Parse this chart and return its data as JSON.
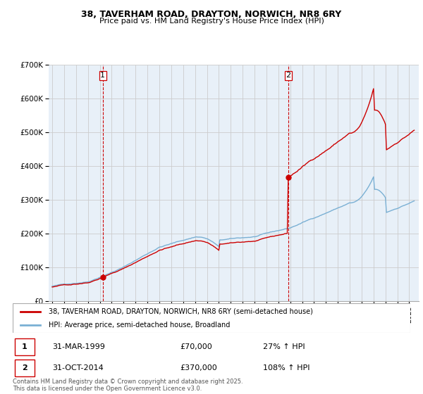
{
  "title1": "38, TAVERHAM ROAD, DRAYTON, NORWICH, NR8 6RY",
  "title2": "Price paid vs. HM Land Registry's House Price Index (HPI)",
  "legend_line1": "38, TAVERHAM ROAD, DRAYTON, NORWICH, NR8 6RY (semi-detached house)",
  "legend_line2": "HPI: Average price, semi-detached house, Broadland",
  "footnote": "Contains HM Land Registry data © Crown copyright and database right 2025.\nThis data is licensed under the Open Government Licence v3.0.",
  "annotation1_date": "31-MAR-1999",
  "annotation1_price": "£70,000",
  "annotation1_hpi": "27% ↑ HPI",
  "annotation2_date": "31-OCT-2014",
  "annotation2_price": "£370,000",
  "annotation2_hpi": "108% ↑ HPI",
  "red_color": "#cc0000",
  "blue_color": "#7ab0d4",
  "vline_color": "#cc0000",
  "grid_color": "#cccccc",
  "bg_color": "#e8f0f8",
  "sale1_year": 1999.25,
  "sale2_year": 2014.833,
  "sale1_price": 70000,
  "sale2_price": 370000,
  "ylim_max": 700000,
  "ylim_min": 0,
  "xmin": 1994.7,
  "xmax": 2025.8
}
